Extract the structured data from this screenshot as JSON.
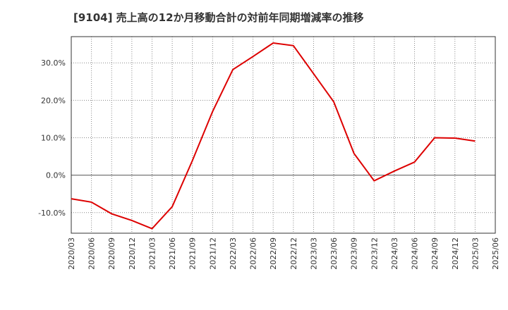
{
  "chart_data": {
    "type": "line",
    "title": "[9104]  売上高の12か月移動合計の対前年同期増減率の推移",
    "xlabel": "",
    "ylabel": "",
    "ylim": [
      -15.5,
      37.0
    ],
    "yticks": [
      -10,
      0,
      10,
      20,
      30
    ],
    "ytick_labels": [
      "-10.0%",
      "0.0%",
      "10.0%",
      "20.0%",
      "30.0%"
    ],
    "categories": [
      "2020/03",
      "2020/06",
      "2020/09",
      "2020/12",
      "2021/03",
      "2021/06",
      "2021/09",
      "2021/12",
      "2022/03",
      "2022/06",
      "2022/09",
      "2022/12",
      "2023/03",
      "2023/06",
      "2023/09",
      "2023/12",
      "2024/03",
      "2024/06",
      "2024/09",
      "2024/12",
      "2025/03",
      "2025/06"
    ],
    "series": [
      {
        "name": "売上高12か月移動合計 対前年同期増減率",
        "color": "#dd0000",
        "values": [
          -6.3,
          -7.2,
          -10.3,
          -12.1,
          -14.3,
          -8.4,
          3.9,
          17.0,
          28.2,
          31.7,
          35.3,
          34.6,
          27.1,
          19.6,
          5.8,
          -1.5,
          1.1,
          3.5,
          10.0,
          9.9,
          9.1,
          null
        ]
      }
    ],
    "grid": true,
    "legend": "none"
  }
}
